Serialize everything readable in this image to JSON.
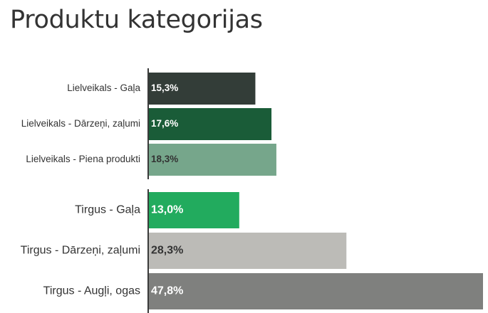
{
  "chart_data": {
    "type": "bar",
    "orientation": "horizontal",
    "title": "Produktu kategorijas",
    "categories": [
      "Lielveikals - Gaļa",
      "Lielveikals - Dārzeņi, zaļumi",
      "Lielveikals - Piena produkti",
      "Tirgus - Gaļa",
      "Tirgus - Dārzeņi, zaļumi",
      "Tirgus - Augļi, ogas"
    ],
    "values": [
      15.3,
      17.6,
      18.3,
      13.0,
      28.3,
      47.8
    ],
    "value_labels": [
      "15,3%",
      "17,6%",
      "18,3%",
      "13,0%",
      "28,3%",
      "47,8%"
    ],
    "groups": [
      {
        "name": "Lielveikals",
        "indices": [
          0,
          1,
          2
        ]
      },
      {
        "name": "Tirgus",
        "indices": [
          3,
          4,
          5
        ]
      }
    ],
    "colors": [
      "#333d38",
      "#1a5c38",
      "#76a68b",
      "#22ab5e",
      "#bcbbb7",
      "#7f807e"
    ],
    "label_colors": [
      "#ffffff",
      "#ffffff",
      "#333333",
      "#ffffff",
      "#333333",
      "#ffffff"
    ],
    "xlim": [
      0,
      47.8
    ],
    "grid": false,
    "legend": "none"
  }
}
